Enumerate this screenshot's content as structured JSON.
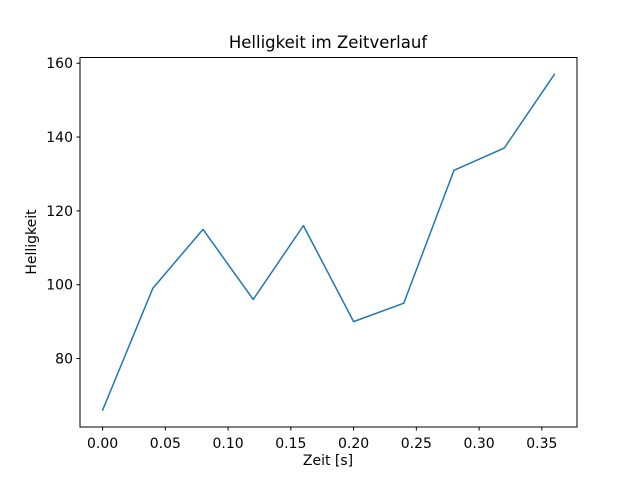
{
  "figure": {
    "title": "Helligkeit im Zeitverlauf",
    "xlabel": "Zeit [s]",
    "ylabel": "Helligkeit",
    "background_color": "#ffffff"
  },
  "chart_data": {
    "type": "line",
    "title": "Helligkeit im Zeitverlauf",
    "xlabel": "Zeit [s]",
    "ylabel": "Helligkeit",
    "x": [
      0.0,
      0.04,
      0.08,
      0.12,
      0.16,
      0.2,
      0.24,
      0.28,
      0.32,
      0.36
    ],
    "y": [
      66,
      99,
      115,
      96,
      116,
      90,
      95,
      131,
      137,
      157
    ],
    "xlim": [
      -0.018,
      0.378
    ],
    "ylim": [
      61.45,
      161.55
    ],
    "x_tick_values": [
      0.0,
      0.05,
      0.1,
      0.15,
      0.2,
      0.25,
      0.3,
      0.35
    ],
    "x_tick_labels": [
      "0.00",
      "0.05",
      "0.10",
      "0.15",
      "0.20",
      "0.25",
      "0.30",
      "0.35"
    ],
    "y_tick_values": [
      80,
      100,
      120,
      140,
      160
    ],
    "y_tick_labels": [
      "80",
      "100",
      "120",
      "140",
      "160"
    ],
    "grid": false,
    "legend": null,
    "line_color": "#1f77b4",
    "line_width": 1.5,
    "frame_color": "#000000",
    "text_color": "#000000"
  }
}
